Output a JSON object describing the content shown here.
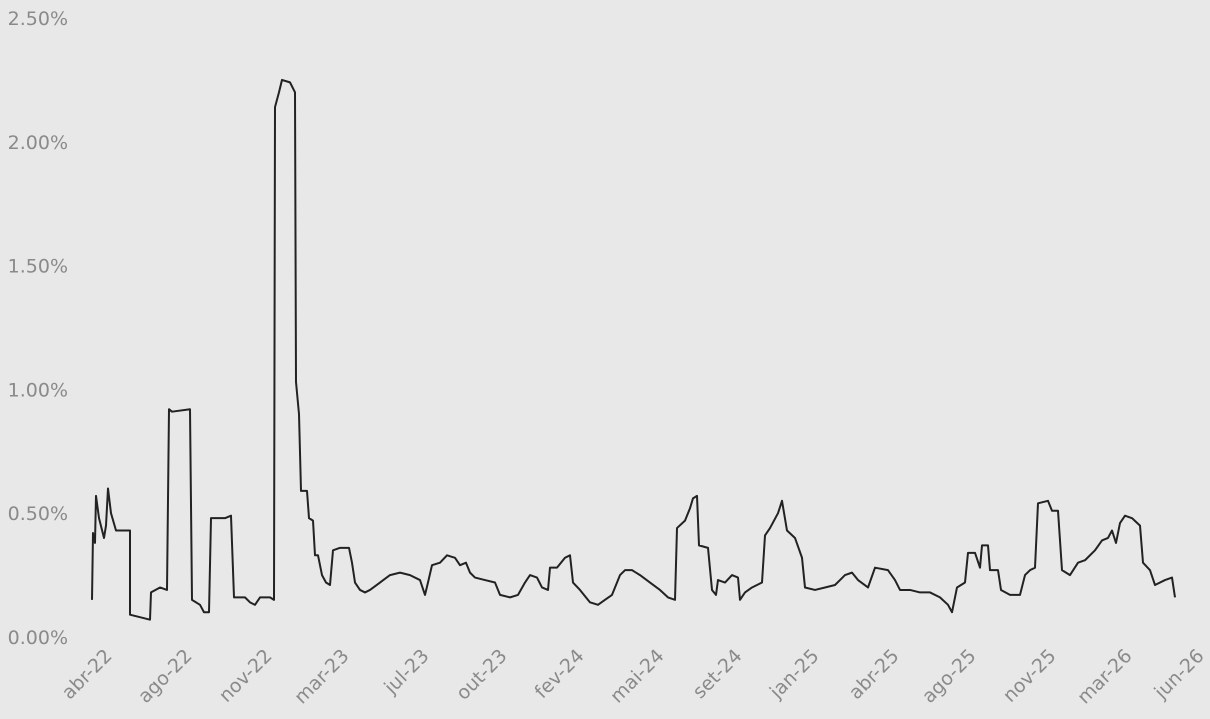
{
  "chart_data": {
    "type": "line",
    "x": [
      92,
      93,
      95,
      96,
      99,
      104,
      106,
      108,
      111,
      116,
      130,
      130,
      140,
      150,
      151,
      160,
      167,
      169,
      172,
      190,
      192,
      200,
      204,
      209,
      211,
      225,
      231,
      234,
      245,
      250,
      255,
      260,
      270,
      274,
      275,
      279,
      282,
      290,
      295,
      296,
      299,
      301,
      307,
      309,
      313,
      315,
      318,
      322,
      326,
      330,
      333,
      340,
      349,
      352,
      355,
      360,
      365,
      370,
      380,
      390,
      400,
      410,
      420,
      425,
      428,
      432,
      440,
      447,
      455,
      460,
      466,
      470,
      475,
      485,
      495,
      500,
      510,
      518,
      525,
      530,
      537,
      542,
      548,
      550,
      557,
      565,
      570,
      573,
      580,
      590,
      598,
      605,
      612,
      620,
      625,
      632,
      640,
      650,
      660,
      668,
      675,
      677,
      685,
      690,
      693,
      697,
      699,
      708,
      712,
      716,
      718,
      725,
      732,
      738,
      740,
      745,
      752,
      762,
      765,
      770,
      778,
      782,
      787,
      795,
      802,
      805,
      815,
      825,
      835,
      840,
      845,
      852,
      858,
      868,
      875,
      888,
      895,
      900,
      910,
      920,
      930,
      940,
      948,
      952,
      957,
      965,
      968,
      975,
      980,
      982,
      988,
      990,
      998,
      1001,
      1010,
      1020,
      1025,
      1030,
      1035,
      1038,
      1048,
      1052,
      1058,
      1062,
      1070,
      1078,
      1085,
      1095,
      1102,
      1108,
      1112,
      1116,
      1120,
      1125,
      1132,
      1140,
      1143,
      1150,
      1155,
      1165,
      1172,
      1175
    ],
    "series": [
      {
        "name": "series",
        "color": "#222222",
        "values": [
          0.15,
          0.42,
          0.38,
          0.57,
          0.48,
          0.4,
          0.45,
          0.6,
          0.5,
          0.43,
          0.43,
          0.09,
          0.08,
          0.07,
          0.18,
          0.2,
          0.19,
          0.92,
          0.91,
          0.92,
          0.15,
          0.13,
          0.1,
          0.1,
          0.48,
          0.48,
          0.49,
          0.16,
          0.16,
          0.14,
          0.13,
          0.16,
          0.16,
          0.15,
          2.14,
          2.2,
          2.25,
          2.24,
          2.2,
          1.03,
          0.9,
          0.59,
          0.59,
          0.48,
          0.47,
          0.33,
          0.33,
          0.25,
          0.22,
          0.21,
          0.35,
          0.36,
          0.36,
          0.3,
          0.22,
          0.19,
          0.18,
          0.19,
          0.22,
          0.25,
          0.26,
          0.25,
          0.23,
          0.17,
          0.22,
          0.29,
          0.3,
          0.33,
          0.32,
          0.29,
          0.3,
          0.26,
          0.24,
          0.23,
          0.22,
          0.17,
          0.16,
          0.17,
          0.22,
          0.25,
          0.24,
          0.2,
          0.19,
          0.28,
          0.28,
          0.32,
          0.33,
          0.22,
          0.19,
          0.14,
          0.13,
          0.15,
          0.17,
          0.25,
          0.27,
          0.27,
          0.25,
          0.22,
          0.19,
          0.16,
          0.15,
          0.44,
          0.47,
          0.52,
          0.56,
          0.57,
          0.37,
          0.36,
          0.19,
          0.17,
          0.23,
          0.22,
          0.25,
          0.24,
          0.15,
          0.18,
          0.2,
          0.22,
          0.41,
          0.44,
          0.5,
          0.55,
          0.43,
          0.4,
          0.32,
          0.2,
          0.19,
          0.2,
          0.21,
          0.23,
          0.25,
          0.26,
          0.23,
          0.2,
          0.28,
          0.27,
          0.23,
          0.19,
          0.19,
          0.18,
          0.18,
          0.16,
          0.13,
          0.1,
          0.2,
          0.22,
          0.34,
          0.34,
          0.28,
          0.37,
          0.37,
          0.27,
          0.27,
          0.19,
          0.17,
          0.17,
          0.25,
          0.27,
          0.28,
          0.54,
          0.55,
          0.51,
          0.51,
          0.27,
          0.25,
          0.3,
          0.31,
          0.35,
          0.39,
          0.4,
          0.43,
          0.38,
          0.46,
          0.49,
          0.48,
          0.45,
          0.3,
          0.27,
          0.21,
          0.23,
          0.24,
          0.16
        ]
      }
    ],
    "xlim": [
      88,
      1210
    ],
    "xticks": [
      {
        "value": 113,
        "label": "abr-22"
      },
      {
        "value": 193,
        "label": "ago-22"
      },
      {
        "value": 273,
        "label": "nov-22"
      },
      {
        "value": 350,
        "label": "mar-23"
      },
      {
        "value": 430,
        "label": "jul-23"
      },
      {
        "value": 508,
        "label": "out-23"
      },
      {
        "value": 585,
        "label": "fev-24"
      },
      {
        "value": 665,
        "label": "mai-24"
      },
      {
        "value": 743,
        "label": "set-24"
      },
      {
        "value": 820,
        "label": "jan-25"
      },
      {
        "value": 900,
        "label": "abr-25"
      },
      {
        "value": 977,
        "label": "ago-25"
      },
      {
        "value": 1057,
        "label": "nov-25"
      },
      {
        "value": 1133,
        "label": "mar-26"
      },
      {
        "value": 1205,
        "label": "jun-26"
      }
    ],
    "ylim": [
      0,
      2.5
    ],
    "yticks": [
      {
        "value": 0,
        "label": "0.00%"
      },
      {
        "value": 0.5,
        "label": "0.50%"
      },
      {
        "value": 1,
        "label": "1.00%"
      },
      {
        "value": 1.5,
        "label": "1.50%"
      },
      {
        "value": 2,
        "label": "2.00%"
      },
      {
        "value": 2.5,
        "label": "2.50%"
      }
    ],
    "grid": false
  }
}
